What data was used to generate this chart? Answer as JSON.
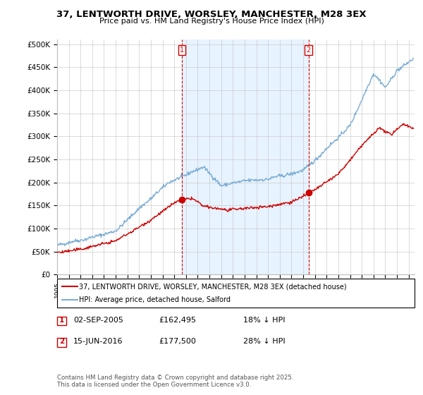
{
  "title": "37, LENTWORTH DRIVE, WORSLEY, MANCHESTER, M28 3EX",
  "subtitle": "Price paid vs. HM Land Registry's House Price Index (HPI)",
  "ylabel_ticks": [
    "£0",
    "£50K",
    "£100K",
    "£150K",
    "£200K",
    "£250K",
    "£300K",
    "£350K",
    "£400K",
    "£450K",
    "£500K"
  ],
  "ytick_values": [
    0,
    50000,
    100000,
    150000,
    200000,
    250000,
    300000,
    350000,
    400000,
    450000,
    500000
  ],
  "ylim": [
    0,
    510000
  ],
  "xlim_start": 1995.0,
  "xlim_end": 2025.5,
  "sale1_x": 2005.67,
  "sale1_y": 162495,
  "sale1_label": "1",
  "sale1_date": "02-SEP-2005",
  "sale1_price": "£162,495",
  "sale1_pct": "18% ↓ HPI",
  "sale2_x": 2016.45,
  "sale2_y": 177500,
  "sale2_label": "2",
  "sale2_date": "15-JUN-2016",
  "sale2_price": "£177,500",
  "sale2_pct": "28% ↓ HPI",
  "legend_line1": "37, LENTWORTH DRIVE, WORSLEY, MANCHESTER, M28 3EX (detached house)",
  "legend_line2": "HPI: Average price, detached house, Salford",
  "footer": "Contains HM Land Registry data © Crown copyright and database right 2025.\nThis data is licensed under the Open Government Licence v3.0.",
  "red_color": "#cc0000",
  "blue_color": "#7aadd4",
  "shade_color": "#ddeeff",
  "marker_box_color": "#cc0000",
  "vline_color": "#cc0000",
  "grid_color": "#cccccc",
  "bg_color": "#ffffff"
}
